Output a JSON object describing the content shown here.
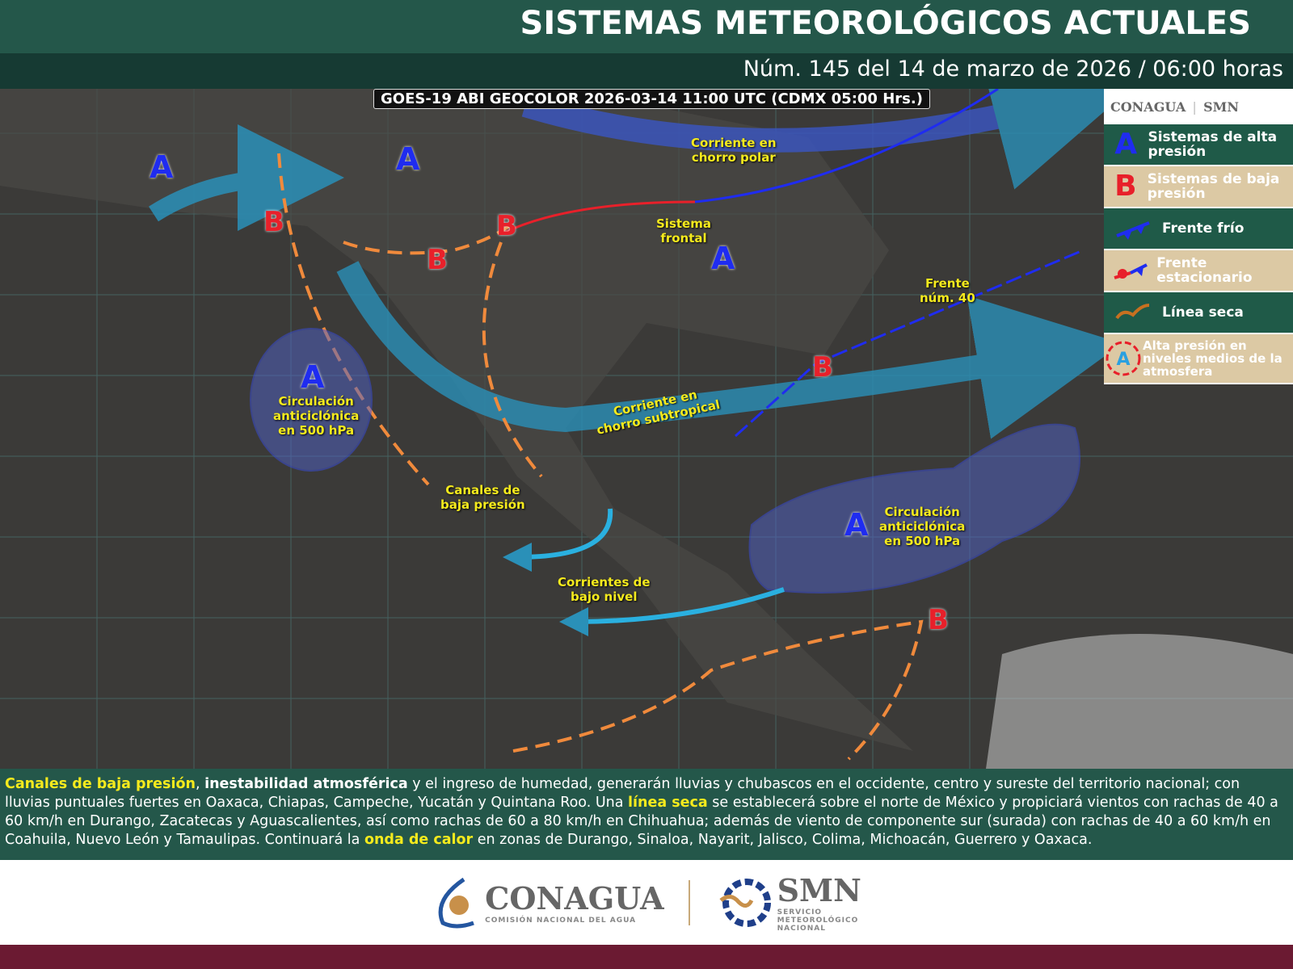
{
  "header": {
    "title": "SISTEMAS METEOROLÓGICOS ACTUALES",
    "subtitle": "Núm. 145 del 14 de marzo de 2026 / 06:00 horas"
  },
  "map": {
    "satellite_caption": "GOES-19 ABI GEOCOLOR 2026-03-14 11:00 UTC (CDMX  05:00 Hrs.)",
    "labels": [
      "Corriente en\nchorro polar",
      "Sistema\nfrontal",
      "Frente\nnúm. 40",
      "Circulación\nanticiclónica\nen 500 hPa",
      "Corriente en\nchorro subtropical",
      "Canales de\nbaja presión",
      "Circulación\nanticiclónica\nen 500 hPa",
      "Corrientes de\nbajo nivel"
    ],
    "high_symbol": "A",
    "low_symbol": "B"
  },
  "legend": {
    "logos": [
      "CONAGUA",
      "SMN"
    ],
    "items": [
      {
        "symbol": "A",
        "label": "Sistemas de alta presión",
        "color": "#1f2cf0"
      },
      {
        "symbol": "B",
        "label": "Sistemas de baja presión",
        "color": "#e8202a"
      },
      {
        "symbol": "cold-front-icon",
        "label": "Frente frío"
      },
      {
        "symbol": "stationary-front-icon",
        "label": "Frente estacionario"
      },
      {
        "symbol": "dry-line-icon",
        "label": "Línea seca"
      },
      {
        "symbol": "A",
        "label": "Alta presión en niveles medios de la atmosfera"
      }
    ]
  },
  "bulletin": {
    "p1": "Canales de baja presión",
    "p2": ", ",
    "p3": "inestabilidad atmosférica",
    "p4": " y el ingreso de humedad, generarán lluvias y chubascos en el occidente, centro y sureste del territorio nacional; con lluvias puntuales fuertes en Oaxaca, Chiapas, Campeche, Yucatán y Quintana Roo. Una ",
    "p5": "línea seca",
    "p6": " se establecerá sobre el norte de México y propiciará vientos con rachas de 40 a 60 km/h en Durango, Zacatecas y Aguascalientes, así como rachas de 60 a 80 km/h en Chihuahua; además de viento de componente sur (surada) con rachas de 40 a 60 km/h en Coahuila, Nuevo León y Tamaulipas. Continuará la ",
    "p7": "onda de calor",
    "p8": " en zonas de Durango, Sinaloa, Nayarit, Jalisco, Colima, Michoacán, Guerrero y Oaxaca."
  },
  "footer": {
    "conagua": "CONAGUA",
    "conagua_sub": "COMISIÓN NACIONAL DEL AGUA",
    "smn": "SMN",
    "smn_sub": "SERVICIO METEOROLÓGICO NACIONAL"
  },
  "colors": {
    "header": "#24574a",
    "subheader": "#163a33",
    "highlight": "#f5ea1d",
    "bottom_band": "#6b1a32"
  }
}
